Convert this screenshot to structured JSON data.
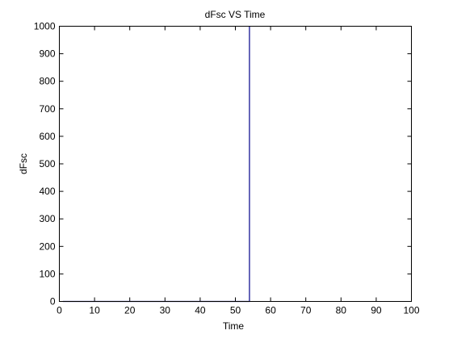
{
  "chart_data": {
    "type": "line",
    "title": "dFsc VS Time",
    "xlabel": "Time",
    "ylabel": "dFsc",
    "xlim": [
      0,
      100
    ],
    "ylim": [
      0,
      1000
    ],
    "xticks": [
      0,
      10,
      20,
      30,
      40,
      50,
      60,
      70,
      80,
      90,
      100
    ],
    "yticks": [
      0,
      100,
      200,
      300,
      400,
      500,
      600,
      700,
      800,
      900,
      1000
    ],
    "grid": false,
    "series": [
      {
        "color": "#00008b",
        "x": [
          1,
          54,
          54
        ],
        "y": [
          0,
          0,
          1000
        ]
      }
    ]
  }
}
